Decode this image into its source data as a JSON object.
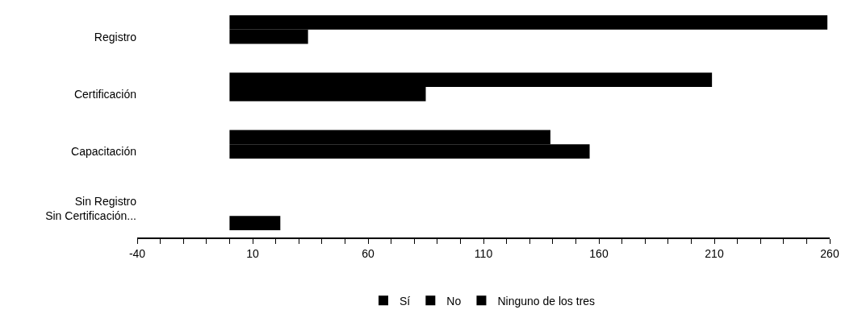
{
  "chart_data": {
    "type": "bar",
    "orientation": "horizontal",
    "categories": [
      "Registro",
      "Certificación",
      "Capacitación",
      "Sin Registro Sin Certificación..."
    ],
    "series": [
      {
        "name": "Sí",
        "color": "#000000",
        "values": [
          259,
          209,
          139,
          null
        ]
      },
      {
        "name": "No",
        "color": "#000000",
        "values": [
          34,
          85,
          156,
          null
        ]
      },
      {
        "name": "Ninguno de los tres",
        "color": "#000000",
        "values": [
          null,
          null,
          null,
          22
        ]
      }
    ],
    "xlim": [
      -40,
      260
    ],
    "xticks": [
      -40,
      {
        "value": -30,
        "label": null
      },
      {
        "value": -20,
        "label": null
      },
      {
        "value": -10,
        "label": null
      },
      {
        "value": 0,
        "label": null
      },
      10,
      {
        "value": 20,
        "label": null
      },
      {
        "value": 30,
        "label": null
      },
      {
        "value": 40,
        "label": null
      },
      {
        "value": 50,
        "label": null
      },
      60,
      {
        "value": 70,
        "label": null
      },
      {
        "value": 80,
        "label": null
      },
      {
        "value": 90,
        "label": null
      },
      {
        "value": 100,
        "label": null
      },
      110,
      {
        "value": 120,
        "label": null
      },
      {
        "value": 130,
        "label": null
      },
      {
        "value": 140,
        "label": null
      },
      {
        "value": 150,
        "label": null
      },
      160,
      {
        "value": 170,
        "label": null
      },
      {
        "value": 180,
        "label": null
      },
      {
        "value": 190,
        "label": null
      },
      {
        "value": 200,
        "label": null
      },
      210,
      {
        "value": 220,
        "label": null
      },
      {
        "value": 230,
        "label": null
      },
      {
        "value": 240,
        "label": null
      },
      {
        "value": 250,
        "label": null
      },
      260
    ],
    "legend": "bottom"
  }
}
